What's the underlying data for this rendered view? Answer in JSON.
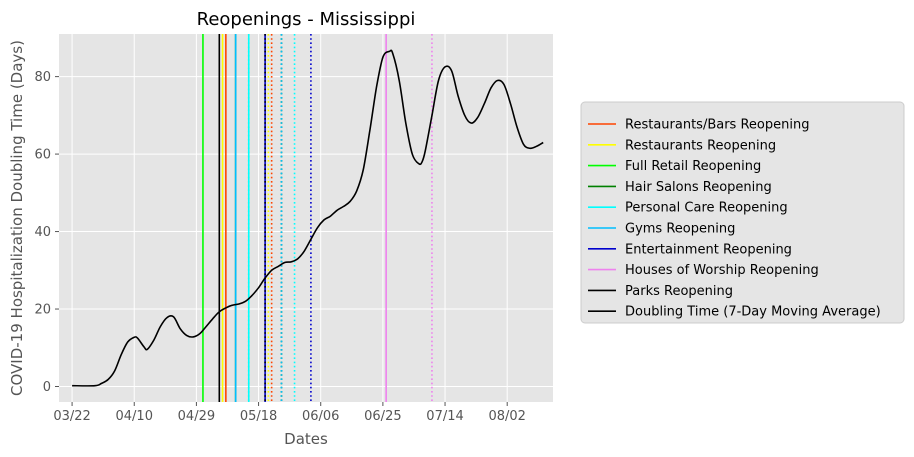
{
  "chart_data": {
    "type": "line",
    "title": "Reopenings - Mississippi",
    "xlabel": "Dates",
    "ylabel": "COVID-19 Hospitalization Doubling Time (Days)",
    "x_ticks": [
      "03/22",
      "04/10",
      "04/29",
      "05/18",
      "06/06",
      "06/25",
      "07/14",
      "08/02"
    ],
    "y_ticks": [
      0,
      20,
      40,
      60,
      80
    ],
    "xlim": [
      "2020-03-18",
      "2020-08-16"
    ],
    "ylim": [
      -4,
      91
    ],
    "grid": true,
    "legend_position": "outside-right",
    "series": [
      {
        "name": "Doubling Time (7-Day Moving Average)",
        "color": "#000000",
        "x": [
          "2020-03-22",
          "2020-03-29",
          "2020-03-31",
          "2020-04-02",
          "2020-04-04",
          "2020-04-06",
          "2020-04-08",
          "2020-04-10",
          "2020-04-11",
          "2020-04-13",
          "2020-04-14",
          "2020-04-16",
          "2020-04-18",
          "2020-04-20",
          "2020-04-22",
          "2020-04-24",
          "2020-04-26",
          "2020-04-28",
          "2020-04-30",
          "2020-05-02",
          "2020-05-04",
          "2020-05-06",
          "2020-05-08",
          "2020-05-10",
          "2020-05-12",
          "2020-05-14",
          "2020-05-16",
          "2020-05-18",
          "2020-05-20",
          "2020-05-22",
          "2020-05-24",
          "2020-05-26",
          "2020-05-28",
          "2020-05-30",
          "2020-06-01",
          "2020-06-03",
          "2020-06-05",
          "2020-06-07",
          "2020-06-09",
          "2020-06-11",
          "2020-06-13",
          "2020-06-15",
          "2020-06-17",
          "2020-06-19",
          "2020-06-21",
          "2020-06-23",
          "2020-06-25",
          "2020-06-27",
          "2020-06-28",
          "2020-06-30",
          "2020-07-02",
          "2020-07-04",
          "2020-07-06",
          "2020-07-07",
          "2020-07-08",
          "2020-07-10",
          "2020-07-12",
          "2020-07-14",
          "2020-07-16",
          "2020-07-18",
          "2020-07-20",
          "2020-07-22",
          "2020-07-24",
          "2020-07-26",
          "2020-07-28",
          "2020-07-30",
          "2020-08-01",
          "2020-08-03",
          "2020-08-05",
          "2020-08-07",
          "2020-08-09",
          "2020-08-11",
          "2020-08-13"
        ],
        "y": [
          0.2,
          0.2,
          0.8,
          1.8,
          4.0,
          8.2,
          11.5,
          12.7,
          12.5,
          10.2,
          9.6,
          12.0,
          15.5,
          17.8,
          18.0,
          15.0,
          13.2,
          12.8,
          13.6,
          15.5,
          17.5,
          19.3,
          20.3,
          21.0,
          21.3,
          22.0,
          23.5,
          25.5,
          28.0,
          30.0,
          31.0,
          32.0,
          32.2,
          33.0,
          35.0,
          38.0,
          41.0,
          43.0,
          44.0,
          45.5,
          46.5,
          47.8,
          50.5,
          56.0,
          66.0,
          77.0,
          85.0,
          86.5,
          86.0,
          79.0,
          68.0,
          60.0,
          57.5,
          58.0,
          61.0,
          70.0,
          79.0,
          82.5,
          81.5,
          75.0,
          70.0,
          68.0,
          69.5,
          73.0,
          77.0,
          79.0,
          78.0,
          73.0,
          67.0,
          62.5,
          61.5,
          62.0,
          63.0
        ]
      }
    ],
    "reopenings": [
      {
        "name": "Restaurants/Bars Reopening",
        "color": "#ff4500",
        "solid": "2020-05-08",
        "dotted": "2020-05-22"
      },
      {
        "name": "Restaurants Reopening",
        "color": "#ffff00",
        "solid": "2020-05-07",
        "dotted": "2020-05-21"
      },
      {
        "name": "Full Retail Reopening",
        "color": "#00ff00",
        "solid": "2020-05-01",
        "dotted": "2020-05-15"
      },
      {
        "name": "Hair Salons Reopening",
        "color": "#008000",
        "solid": "2020-05-11",
        "dotted": "2020-05-25"
      },
      {
        "name": "Personal Care Reopening",
        "color": "#00ffff",
        "solid": "2020-05-15",
        "dotted": "2020-05-29"
      },
      {
        "name": "Gyms Reopening",
        "color": "#00bfff",
        "solid": "2020-05-11",
        "dotted": "2020-05-25"
      },
      {
        "name": "Entertainment Reopening",
        "color": "#0000cd",
        "solid": "2020-05-20",
        "dotted": "2020-06-03"
      },
      {
        "name": "Houses of Worship Reopening",
        "color": "#ee82ee",
        "solid": "2020-06-26",
        "dotted": "2020-07-10"
      },
      {
        "name": "Parks Reopening",
        "color": "#000000",
        "solid": "2020-05-06",
        "dotted": "2020-05-20"
      }
    ]
  }
}
